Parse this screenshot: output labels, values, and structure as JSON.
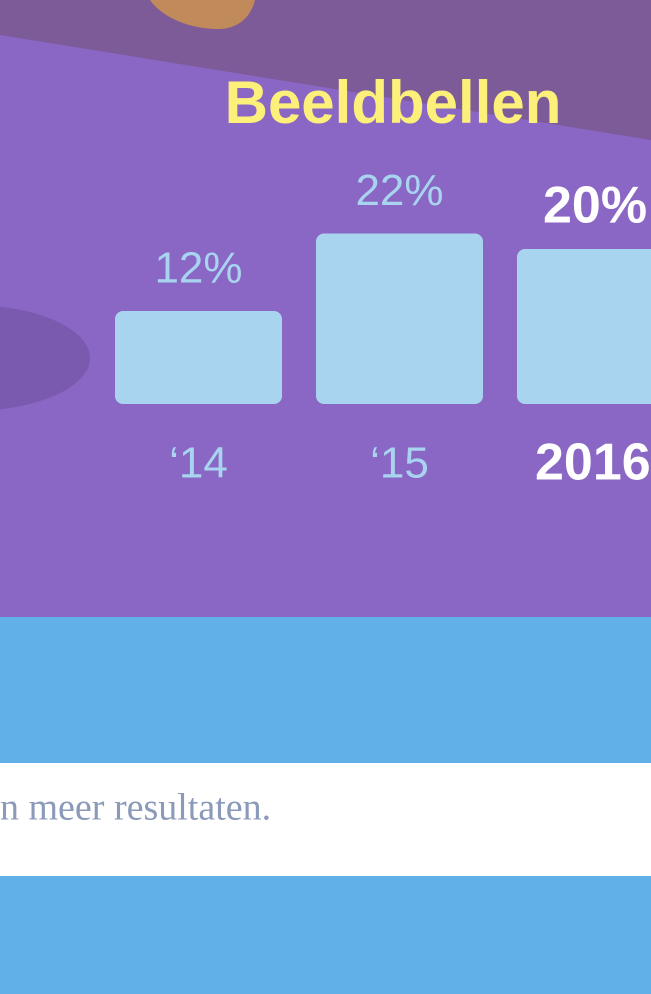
{
  "chart_data": {
    "type": "bar",
    "title": "Beeldbellen",
    "categories": [
      "‘14",
      "‘15",
      "2016"
    ],
    "values": [
      12,
      22,
      20
    ],
    "value_labels": [
      "12%",
      "22%",
      "20%"
    ],
    "color": "#a8d4ef"
  },
  "footer": {
    "text": "n meer resultaten."
  }
}
